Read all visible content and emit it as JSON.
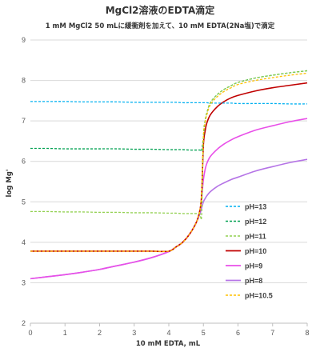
{
  "chart_data": {
    "type": "line",
    "title": "MgCl2溶液のEDTA滴定",
    "subtitle": "1 mM MgCl2 50 mLに緩衝剤を加えて、10 mM EDTA(2Na塩)で滴定",
    "xlabel": "10 mM EDTA, mL",
    "ylabel": "log Mg'",
    "xlim": [
      0,
      8
    ],
    "ylim": [
      2,
      9
    ],
    "xticks": [
      "0",
      "1",
      "2",
      "3",
      "4",
      "5",
      "6",
      "7",
      "8"
    ],
    "yticks": [
      "2",
      "3",
      "4",
      "5",
      "6",
      "7",
      "8",
      "9"
    ],
    "grid": "horizontal",
    "legend_position": "right",
    "x": [
      0,
      0.5,
      1,
      1.5,
      2,
      2.5,
      3,
      3.5,
      4,
      4.2,
      4.4,
      4.6,
      4.8,
      4.9,
      4.95,
      5,
      5.05,
      5.1,
      5.2,
      5.4,
      5.6,
      5.8,
      6,
      6.5,
      7,
      7.5,
      8
    ],
    "series": [
      {
        "name": "pH=13",
        "color": "#00b0f0",
        "dash": "3,2",
        "values": [
          7.48,
          7.48,
          7.48,
          7.47,
          7.47,
          7.47,
          7.46,
          7.46,
          7.46,
          7.46,
          7.45,
          7.45,
          7.45,
          7.45,
          7.45,
          7.45,
          7.45,
          7.45,
          7.44,
          7.44,
          7.44,
          7.44,
          7.43,
          7.43,
          7.43,
          7.42,
          7.42
        ]
      },
      {
        "name": "pH=12",
        "color": "#00a050",
        "dash": "3,2",
        "values": [
          6.32,
          6.32,
          6.31,
          6.31,
          6.31,
          6.31,
          6.3,
          6.3,
          6.29,
          6.29,
          6.29,
          6.28,
          6.28,
          6.28,
          6.27,
          6.6,
          7.0,
          7.2,
          7.45,
          7.65,
          7.78,
          7.87,
          7.95,
          8.06,
          8.13,
          8.19,
          8.24
        ]
      },
      {
        "name": "pH=11",
        "color": "#92d050",
        "dash": "3,2",
        "values": [
          4.76,
          4.76,
          4.75,
          4.75,
          4.74,
          4.74,
          4.73,
          4.73,
          4.72,
          4.72,
          4.71,
          4.71,
          4.71,
          4.7,
          4.7,
          6.6,
          7.0,
          7.2,
          7.45,
          7.65,
          7.78,
          7.87,
          7.95,
          8.06,
          8.13,
          8.19,
          8.24
        ]
      },
      {
        "name": "pH=10",
        "color": "#c00000",
        "dash": "",
        "values": [
          3.78,
          3.78,
          3.78,
          3.78,
          3.78,
          3.78,
          3.78,
          3.78,
          3.78,
          3.88,
          4.0,
          4.2,
          4.5,
          4.8,
          5.2,
          6.4,
          6.75,
          6.95,
          7.15,
          7.35,
          7.48,
          7.57,
          7.63,
          7.74,
          7.82,
          7.88,
          7.94
        ]
      },
      {
        "name": "pH=9",
        "color": "#e84fe8",
        "dash": "",
        "values": [
          3.1,
          3.15,
          3.2,
          3.26,
          3.33,
          3.42,
          3.51,
          3.62,
          3.77,
          3.88,
          4.0,
          4.2,
          4.5,
          4.8,
          5.1,
          5.55,
          5.8,
          5.95,
          6.12,
          6.3,
          6.43,
          6.53,
          6.61,
          6.77,
          6.88,
          6.98,
          7.06
        ]
      },
      {
        "name": "pH=8",
        "color": "#b574e6",
        "dash": "",
        "values": [
          3.1,
          3.15,
          3.2,
          3.26,
          3.33,
          3.42,
          3.51,
          3.62,
          3.77,
          3.88,
          4.0,
          4.2,
          4.5,
          4.7,
          4.85,
          5.0,
          5.08,
          5.15,
          5.25,
          5.38,
          5.47,
          5.55,
          5.61,
          5.76,
          5.87,
          5.97,
          6.05
        ]
      },
      {
        "name": "pH=10.5",
        "color": "#ffc000",
        "dash": "3,2",
        "values": [
          3.78,
          3.78,
          3.78,
          3.78,
          3.78,
          3.78,
          3.78,
          3.78,
          3.78,
          3.88,
          4.0,
          4.2,
          4.5,
          4.8,
          5.3,
          6.6,
          6.95,
          7.15,
          7.4,
          7.6,
          7.73,
          7.82,
          7.9,
          8.0,
          8.07,
          8.13,
          8.18
        ]
      }
    ]
  }
}
